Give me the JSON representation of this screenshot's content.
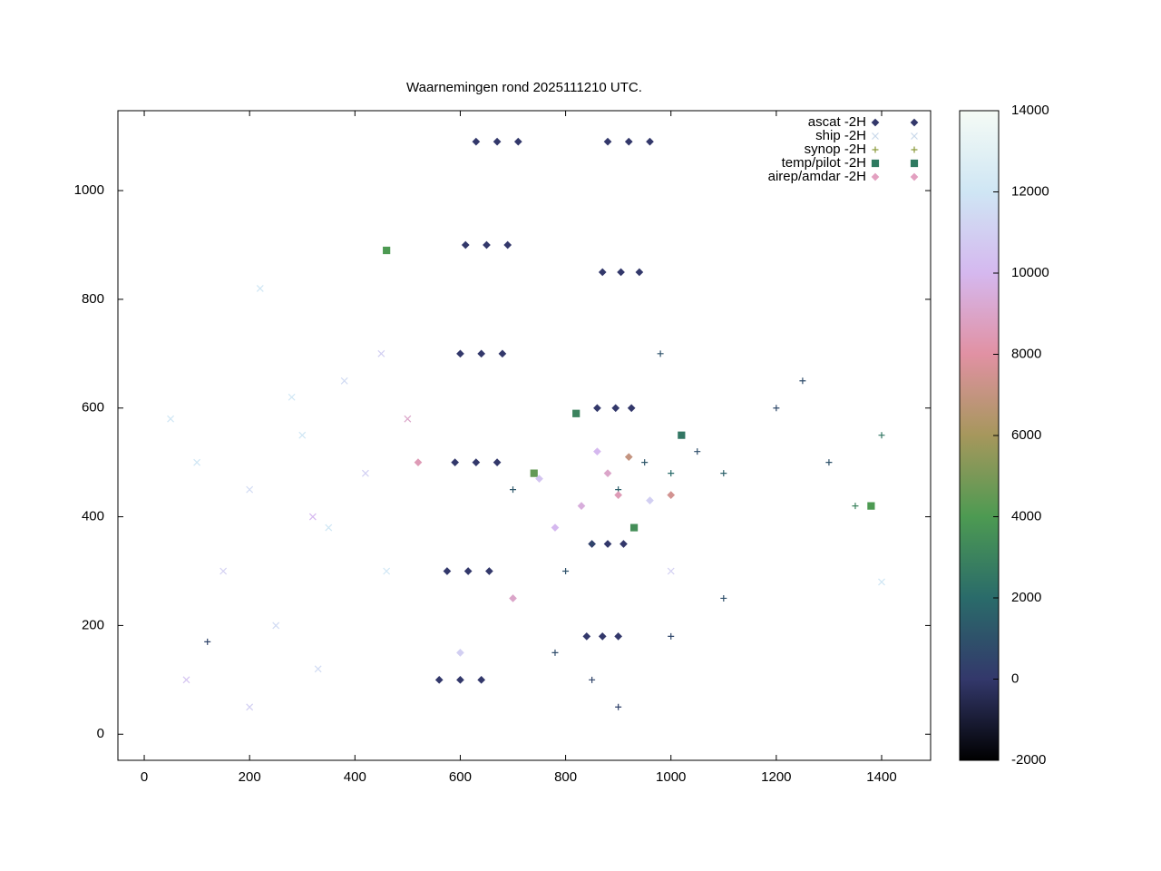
{
  "chart_data": {
    "type": "scatter",
    "title": "Waarnemingen rond 2025111210 UTC.",
    "xlim": [
      -50,
      1493
    ],
    "ylim": [
      -48,
      1147
    ],
    "xticks": [
      0,
      200,
      400,
      600,
      800,
      1000,
      1200,
      1400
    ],
    "yticks": [
      0,
      200,
      400,
      600,
      800,
      1000
    ],
    "legend": "top-right",
    "colorbar": {
      "range": [
        -2000,
        14000
      ],
      "ticks": [
        -2000,
        0,
        2000,
        4000,
        6000,
        8000,
        10000,
        12000,
        14000
      ],
      "colors": [
        "#000000",
        "#33386b",
        "#2a6b6a",
        "#4d9a52",
        "#a6975c",
        "#e191a3",
        "#d5b8ef",
        "#cfe6f4",
        "#f5fbf5"
      ]
    },
    "series": [
      {
        "name": "ascat -2H",
        "marker": "diamond",
        "color": "#33386b",
        "x": [
          630,
          670,
          710,
          610,
          650,
          690,
          600,
          640,
          680,
          590,
          630,
          670,
          575,
          615,
          655,
          560,
          600,
          640,
          880,
          920,
          960,
          870,
          905,
          940,
          860,
          895,
          925,
          850,
          880,
          910,
          840,
          870,
          900
        ],
        "y": [
          1090,
          1090,
          1090,
          900,
          900,
          900,
          700,
          700,
          700,
          500,
          500,
          500,
          300,
          300,
          300,
          100,
          100,
          100,
          1090,
          1090,
          1090,
          850,
          850,
          850,
          600,
          600,
          600,
          350,
          350,
          350,
          180,
          180,
          180
        ],
        "z": [
          0,
          0,
          0,
          0,
          0,
          0,
          0,
          0,
          0,
          0,
          0,
          0,
          0,
          0,
          0,
          0,
          0,
          0,
          0,
          0,
          0,
          0,
          0,
          0,
          0,
          0,
          0,
          0,
          0,
          0,
          0,
          0,
          0
        ]
      },
      {
        "name": "ship -2H",
        "marker": "cross",
        "color": "#c8d8ea",
        "x": [
          100,
          200,
          300,
          150,
          250,
          350,
          420,
          280,
          380,
          220,
          450,
          80,
          200,
          330,
          460,
          1000,
          1400,
          50,
          500,
          320
        ],
        "y": [
          500,
          450,
          550,
          300,
          200,
          380,
          480,
          620,
          650,
          820,
          700,
          100,
          50,
          120,
          300,
          300,
          280,
          580,
          580,
          400
        ],
        "z": [
          12000,
          11500,
          12000,
          11000,
          11500,
          12000,
          11000,
          12000,
          11500,
          12000,
          11000,
          10500,
          11000,
          11500,
          12000,
          11000,
          12000,
          12000,
          9000,
          10000
        ]
      },
      {
        "name": "synop -2H",
        "marker": "plus",
        "color": "#8a9a3a",
        "x": [
          800,
          850,
          900,
          950,
          1000,
          1050,
          1100,
          1200,
          1300,
          1400,
          780,
          850,
          900,
          1000,
          1100,
          700,
          1250,
          980,
          1350,
          120
        ],
        "y": [
          300,
          350,
          450,
          500,
          480,
          520,
          480,
          600,
          500,
          550,
          150,
          100,
          50,
          180,
          250,
          450,
          650,
          700,
          420,
          170
        ],
        "z": [
          1000,
          800,
          1500,
          1200,
          2000,
          900,
          1600,
          700,
          1000,
          2500,
          800,
          500,
          400,
          600,
          900,
          1200,
          800,
          1000,
          3000,
          500
        ]
      },
      {
        "name": "temp/pilot -2H",
        "marker": "square",
        "color": "#2e7a60",
        "x": [
          820,
          740,
          930,
          1020,
          1380,
          460
        ],
        "y": [
          590,
          480,
          380,
          550,
          420,
          890
        ],
        "z": [
          3000,
          4500,
          3500,
          2500,
          4000,
          4000
        ]
      },
      {
        "name": "airep/amdar -2H",
        "marker": "diamond",
        "color": "#e3a0c0",
        "x": [
          880,
          860,
          900,
          750,
          830,
          920,
          960,
          780,
          700,
          600,
          520,
          1000
        ],
        "y": [
          480,
          520,
          440,
          470,
          420,
          510,
          430,
          380,
          250,
          150,
          500,
          440
        ],
        "z": [
          9000,
          10000,
          8500,
          10500,
          9500,
          7000,
          11000,
          10000,
          9000,
          11000,
          8500,
          7500
        ]
      }
    ]
  }
}
